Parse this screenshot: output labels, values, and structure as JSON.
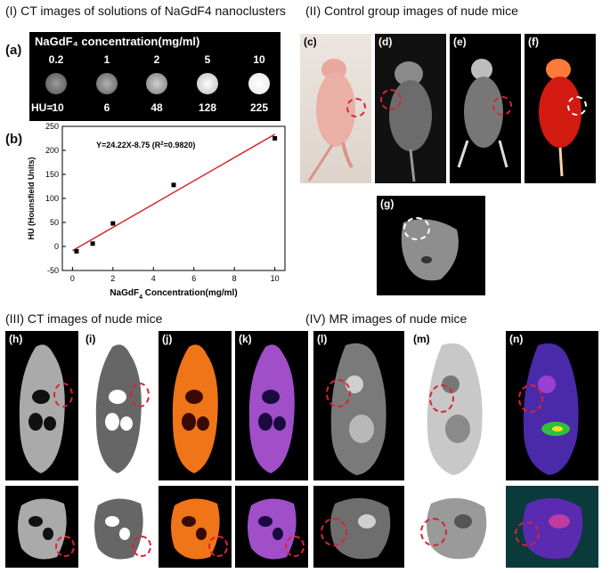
{
  "sections": {
    "I": "(I)  CT images of solutions of NaGdF4 nanoclusters",
    "II": "(II)  Control group images of nude mice",
    "III": "(III)  CT images of nude mice",
    "IV": "(IV)  MR images of nude mice"
  },
  "panel_a": {
    "label": "(a)",
    "header": "NaGdF₄ concentration(mg/ml)",
    "hu_label": "HU=",
    "concentrations": [
      "0.2",
      "1",
      "2",
      "5",
      "10"
    ],
    "hu_values": [
      "-10",
      "6",
      "48",
      "128",
      "225"
    ]
  },
  "panel_b": {
    "label": "(b)",
    "ylabel": "HU (Hounsfield Units)",
    "xlabel_pre": "NaGdF",
    "xlabel_sub": "4",
    "xlabel_post": " Concentration(mg/ml)",
    "eq_pre": "Y=24.22X-8.75  (R",
    "eq_sup": "2",
    "eq_post": "=0.9820)"
  },
  "chart_data": {
    "type": "scatter",
    "x": [
      0.2,
      1,
      2,
      5,
      10
    ],
    "y": [
      -10,
      6,
      48,
      128,
      225
    ],
    "fit": {
      "slope": 24.22,
      "intercept": -8.75,
      "r2": 0.982
    },
    "xlim": [
      -0.5,
      10.5
    ],
    "ylim": [
      -50,
      250
    ],
    "xticks": [
      0,
      2,
      4,
      6,
      8,
      10
    ],
    "yticks": [
      -50,
      0,
      50,
      100,
      150,
      200,
      250
    ],
    "line_color": "#d62728",
    "point_color": "#000000"
  },
  "panels": {
    "c": "(c)",
    "d": "(d)",
    "e": "(e)",
    "f": "(f)",
    "g": "(g)",
    "h": "(h)",
    "i": "(i)",
    "j": "(j)",
    "k": "(k)",
    "l": "(l)",
    "m": "(m)",
    "n": "(n)"
  }
}
